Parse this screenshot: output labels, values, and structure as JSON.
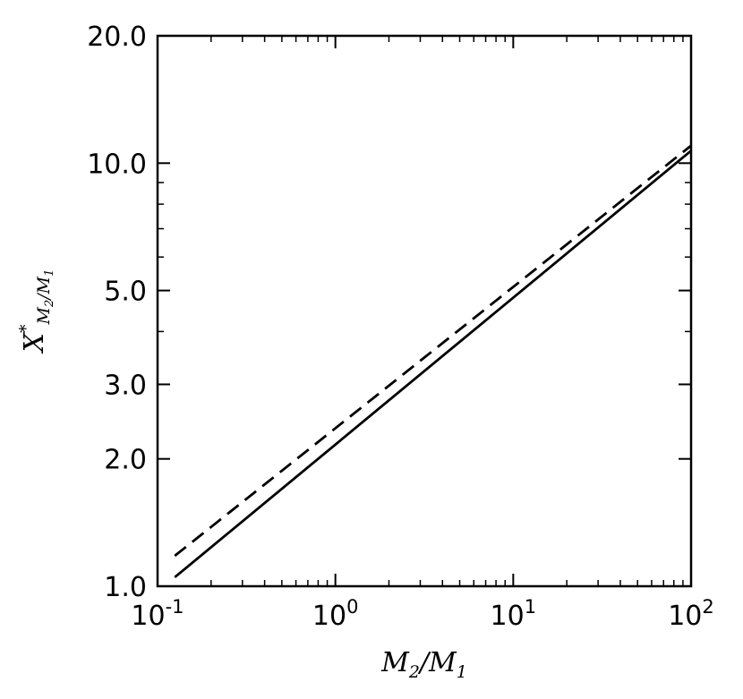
{
  "chart_data": {
    "type": "line",
    "title": "",
    "xlabel": {
      "main": "M",
      "sub": "2",
      "mid": "/M",
      "sub2": "1"
    },
    "ylabel": {
      "main": "X",
      "sup": "*",
      "sub": "M",
      "sub_sub": "2",
      "sub_mid": "/M",
      "sub_sub2": "1"
    },
    "xscale": "log",
    "yscale": "log",
    "xlim": [
      0.1,
      100
    ],
    "ylim": [
      1.0,
      20.0
    ],
    "x_ticks": [
      {
        "value": 0.1,
        "base": "10",
        "exp": "-1"
      },
      {
        "value": 1,
        "base": "10",
        "exp": "0"
      },
      {
        "value": 10,
        "base": "10",
        "exp": "1"
      },
      {
        "value": 100,
        "base": "10",
        "exp": "2"
      }
    ],
    "y_ticks": [
      {
        "value": 1.0,
        "label": "1.0"
      },
      {
        "value": 2.0,
        "label": "2.0"
      },
      {
        "value": 3.0,
        "label": "3.0"
      },
      {
        "value": 5.0,
        "label": "5.0"
      },
      {
        "value": 10.0,
        "label": "10.0"
      },
      {
        "value": 20.0,
        "label": "20.0"
      }
    ],
    "grid": false,
    "legend": "none",
    "series": [
      {
        "style": "solid",
        "color": "#000000",
        "x": [
          0.125,
          100
        ],
        "y": [
          1.05,
          10.7
        ]
      },
      {
        "style": "dashed",
        "color": "#000000",
        "x": [
          0.125,
          100
        ],
        "y": [
          1.18,
          11.0
        ]
      }
    ]
  }
}
